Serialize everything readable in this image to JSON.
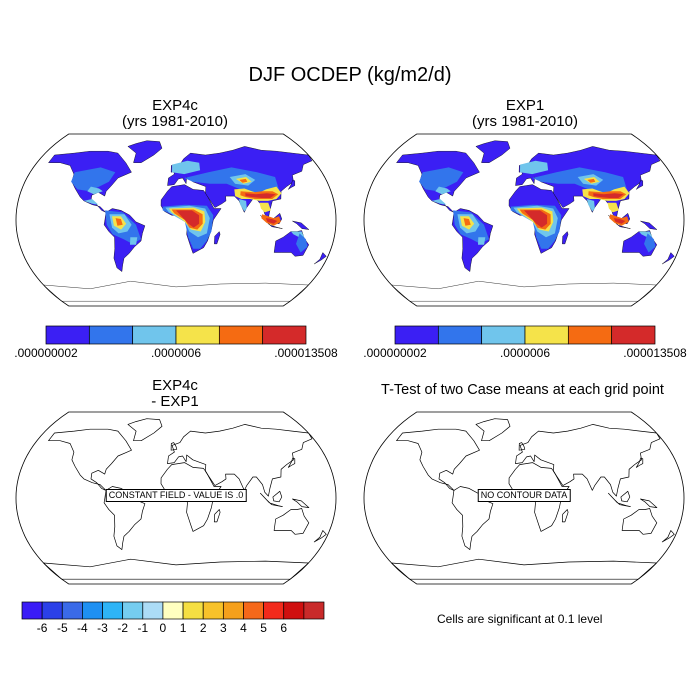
{
  "title": "DJF OCDEP (kg/m2/d)",
  "panels": {
    "top_left": {
      "title_line1": "EXP4c",
      "title_line2": "(yrs 1981-2010)"
    },
    "top_right": {
      "title_line1": "EXP1",
      "title_line2": "(yrs 1981-2010)"
    },
    "bottom_left": {
      "title_line1": "EXP4c",
      "title_line2": "- EXP1",
      "message": "CONSTANT FIELD - VALUE IS .0"
    },
    "bottom_right": {
      "title_line1": "T-Test of two Case means at each grid point",
      "message": "NO CONTOUR DATA"
    }
  },
  "colorbar_top": {
    "colors": [
      "#3b1ff4",
      "#3275ec",
      "#70c5ec",
      "#f5e34a",
      "#f56b12",
      "#d42a2a"
    ],
    "labels": [
      ".000000002",
      ".0000006",
      ".000013508"
    ]
  },
  "colorbar_bottom": {
    "colors": [
      "#3a1cf6",
      "#2b40e8",
      "#3a6ae8",
      "#1e90f2",
      "#2eb4f6",
      "#75cdf0",
      "#acdcf6",
      "#ffffc0",
      "#f5df42",
      "#f7c22a",
      "#f5a01c",
      "#f5681a",
      "#f22a1c",
      "#cf0f0f",
      "#c92a2a"
    ],
    "labels": [
      "-6",
      "-5",
      "-4",
      "-3",
      "-2",
      "-1",
      "0",
      "1",
      "2",
      "3",
      "4",
      "5",
      "6"
    ]
  },
  "significance_note": "Cells are significant at 0.1 level",
  "field_colors": {
    "ocean": "#ffffff",
    "low": "#3b1ff4",
    "mid_low": "#3275ec",
    "mid": "#70c5ec",
    "mid_high": "#f5e34a",
    "high": "#f56b12",
    "max": "#d42a2a"
  }
}
